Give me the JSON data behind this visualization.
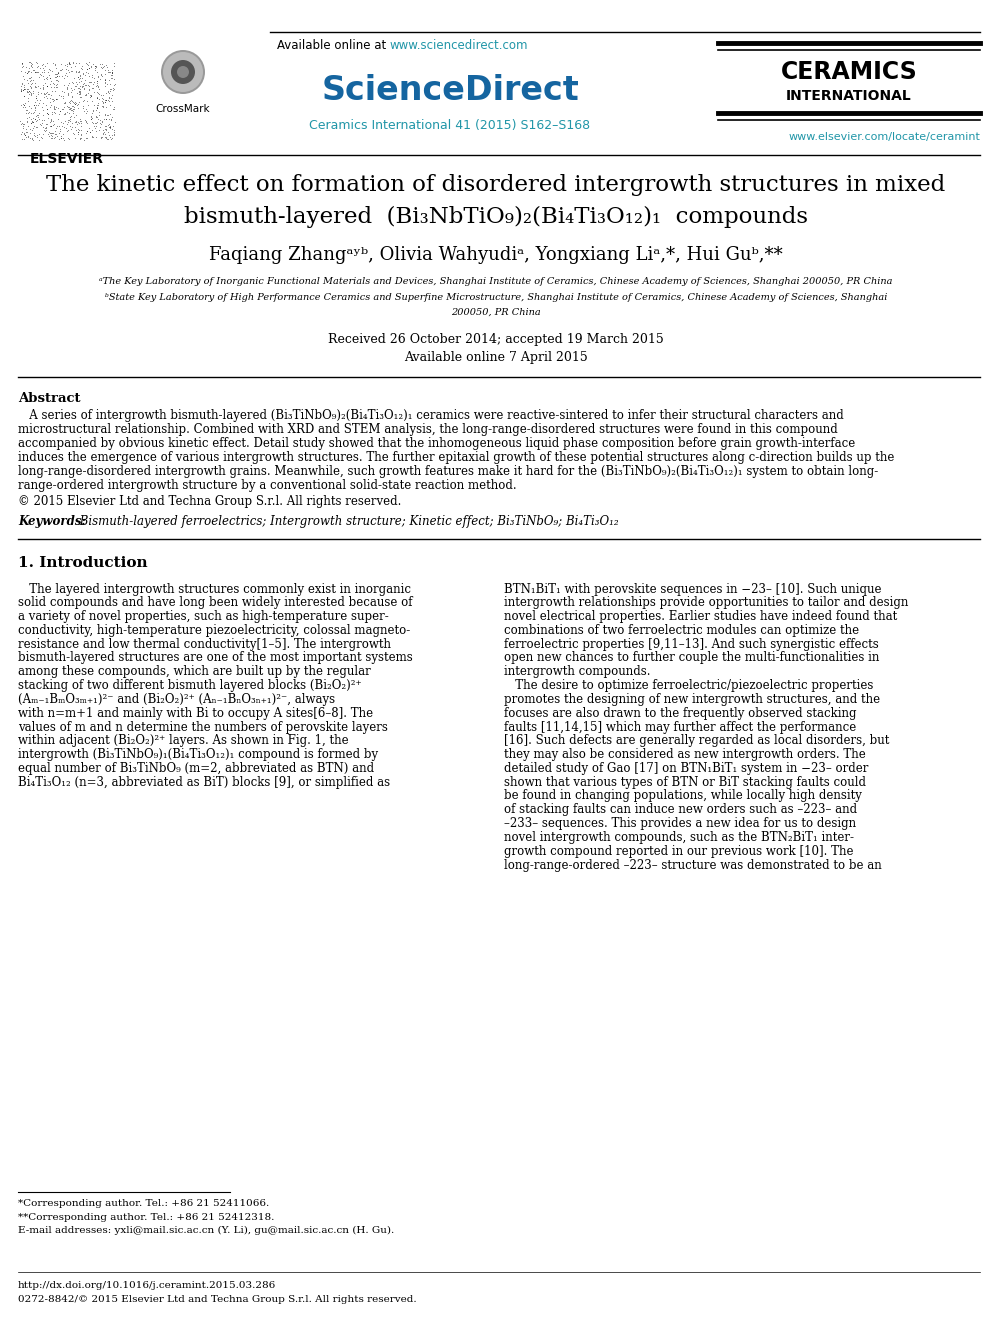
{
  "page_bg": "#ffffff",
  "header": {
    "available_online_text": "Available online at ",
    "sciencedirect_url": "www.sciencedirect.com",
    "sciencedirect_logo": "ScienceDirect",
    "journal_ref": "Ceramics International 41 (2015) S162–S168",
    "journal_url": "www.elsevier.com/locate/ceramint",
    "elsevier_text": "ELSEVIER",
    "ceramics1": "CERAMICS",
    "ceramics2": "INTERNATIONAL"
  },
  "paper_title_line1": "The kinetic effect on formation of disordered intergrowth structures in mixed",
  "paper_title_line2": "bismuth-layered  (Bi₃NbTiO₉)₂(Bi₄Ti₃O₁₂)₁  compounds",
  "authors_line": "Faqiang Zhangᵃʸᵇ, Olivia Wahyudiᵃ, Yongxiang Liᵃ,*, Hui Guᵇ,**",
  "affil_a": "ᵃThe Key Laboratory of Inorganic Functional Materials and Devices, Shanghai Institute of Ceramics, Chinese Academy of Sciences, Shanghai 200050, PR China",
  "affil_b1": "ᵇState Key Laboratory of High Performance Ceramics and Superfine Microstructure, Shanghai Institute of Ceramics, Chinese Academy of Sciences, Shanghai",
  "affil_b2": "200050, PR China",
  "received": "Received 26 October 2014; accepted 19 March 2015",
  "available_online": "Available online 7 April 2015",
  "abstract_title": "Abstract",
  "abstract_lines": [
    "   A series of intergrowth bismuth-layered (Bi₃TiNbO₉)₂(Bi₄Ti₃O₁₂)₁ ceramics were reactive-sintered to infer their structural characters and",
    "microstructural relationship. Combined with XRD and STEM analysis, the long-range-disordered structures were found in this compound",
    "accompanied by obvious kinetic effect. Detail study showed that the inhomogeneous liquid phase composition before grain growth-interface",
    "induces the emergence of various intergrowth structures. The further epitaxial growth of these potential structures along c-direction builds up the",
    "long-range-disordered intergrowth grains. Meanwhile, such growth features make it hard for the (Bi₃TiNbO₉)₂(Bi₄Ti₃O₁₂)₁ system to obtain long-",
    "range-ordered intergrowth structure by a conventional solid-state reaction method."
  ],
  "copyright": "© 2015 Elsevier Ltd and Techna Group S.r.l. All rights reserved.",
  "keywords_label": "Keywords:",
  "keywords_text": " Bismuth-layered ferroelectrics; Intergrowth structure; Kinetic effect; Bi₃TiNbO₉; Bi₄Ti₃O₁₂",
  "section1_title": "1. Introduction",
  "col1_lines": [
    "   The layered intergrowth structures commonly exist in inorganic",
    "solid compounds and have long been widely interested because of",
    "a variety of novel properties, such as high-temperature super-",
    "conductivity, high-temperature piezoelectricity, colossal magneto-",
    "resistance and low thermal conductivity[1–5]. The intergrowth",
    "bismuth-layered structures are one of the most important systems",
    "among these compounds, which are built up by the regular",
    "stacking of two different bismuth layered blocks (Bi₂O₂)²⁺",
    "(Aₘ₋₁BₘO₃ₘ₊₁)²⁻ and (Bi₂O₂)²⁺ (Aₙ₋₁BₙO₃ₙ₊₁)²⁻, always",
    "with n=m+1 and mainly with Bi to occupy A sites[6–8]. The",
    "values of m and n determine the numbers of perovskite layers",
    "within adjacent (Bi₂O₂)²⁺ layers. As shown in Fig. 1, the",
    "intergrowth (Bi₃TiNbO₉)₁(Bi₄Ti₃O₁₂)₁ compound is formed by",
    "equal number of Bi₃TiNbO₉ (m=2, abbreviated as BTN) and",
    "Bi₄Ti₃O₁₂ (n=3, abbreviated as BiT) blocks [9], or simplified as"
  ],
  "col2_lines": [
    "BTN₁BiT₁ with perovskite sequences in −23– [10]. Such unique",
    "intergrowth relationships provide opportunities to tailor and design",
    "novel electrical properties. Earlier studies have indeed found that",
    "combinations of two ferroelectric modules can optimize the",
    "ferroelectric properties [9,11–13]. And such synergistic effects",
    "open new chances to further couple the multi-functionalities in",
    "intergrowth compounds.",
    "   The desire to optimize ferroelectric/piezoelectric properties",
    "promotes the designing of new intergrowth structures, and the",
    "focuses are also drawn to the frequently observed stacking",
    "faults [11,14,15] which may further affect the performance",
    "[16]. Such defects are generally regarded as local disorders, but",
    "they may also be considered as new intergrowth orders. The",
    "detailed study of Gao [17] on BTN₁BiT₁ system in −23– order",
    "shown that various types of BTN or BiT stacking faults could",
    "be found in changing populations, while locally high density",
    "of stacking faults can induce new orders such as –223– and",
    "–233– sequences. This provides a new idea for us to design",
    "novel intergrowth compounds, such as the BTN₂BiT₁ inter-",
    "growth compound reported in our previous work [10]. The",
    "long-range-ordered –223– structure was demonstrated to be an"
  ],
  "footnote1": "*Corresponding author. Tel.: +86 21 52411066.",
  "footnote2": "**Corresponding author. Tel.: +86 21 52412318.",
  "footnote3": "E-mail addresses: yxli@mail.sic.ac.cn (Y. Li), gu@mail.sic.ac.cn (H. Gu).",
  "doi_text": "http://dx.doi.org/10.1016/j.ceramint.2015.03.286",
  "issn_text": "0272-8842/© 2015 Elsevier Ltd and Techna Group S.r.l. All rights reserved.",
  "colors": {
    "blue_link": "#2196a8",
    "sciencedirect_blue": "#1565a0",
    "black": "#000000",
    "dark": "#222222"
  }
}
